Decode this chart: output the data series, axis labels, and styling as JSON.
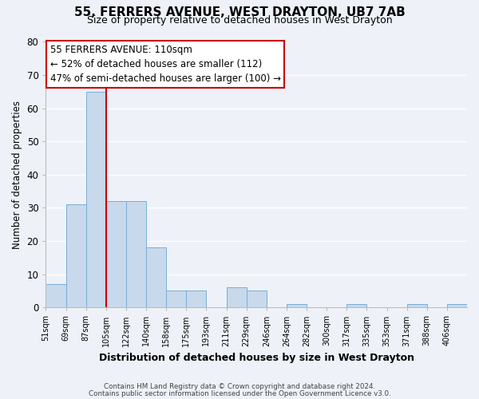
{
  "title": "55, FERRERS AVENUE, WEST DRAYTON, UB7 7AB",
  "subtitle": "Size of property relative to detached houses in West Drayton",
  "xlabel": "Distribution of detached houses by size in West Drayton",
  "ylabel": "Number of detached properties",
  "bin_labels": [
    "51sqm",
    "69sqm",
    "87sqm",
    "105sqm",
    "122sqm",
    "140sqm",
    "158sqm",
    "175sqm",
    "193sqm",
    "211sqm",
    "229sqm",
    "246sqm",
    "264sqm",
    "282sqm",
    "300sqm",
    "317sqm",
    "335sqm",
    "353sqm",
    "371sqm",
    "388sqm",
    "406sqm"
  ],
  "bar_heights": [
    7,
    31,
    65,
    32,
    32,
    18,
    5,
    5,
    0,
    6,
    5,
    0,
    1,
    0,
    0,
    1,
    0,
    0,
    1,
    0,
    1
  ],
  "bar_color": "#c8d9ec",
  "bar_edge_color": "#7aadd4",
  "property_line_x": 3,
  "property_line_color": "#cc0000",
  "ylim": [
    0,
    80
  ],
  "yticks": [
    0,
    10,
    20,
    30,
    40,
    50,
    60,
    70,
    80
  ],
  "annotation_title": "55 FERRERS AVENUE: 110sqm",
  "annotation_line1": "← 52% of detached houses are smaller (112)",
  "annotation_line2": "47% of semi-detached houses are larger (100) →",
  "annotation_box_color": "#ffffff",
  "annotation_box_edge": "#cc0000",
  "footer_line1": "Contains HM Land Registry data © Crown copyright and database right 2024.",
  "footer_line2": "Contains public sector information licensed under the Open Government Licence v3.0.",
  "background_color": "#eef2f8",
  "plot_bg_color": "#eef2f8",
  "grid_color": "#ffffff"
}
